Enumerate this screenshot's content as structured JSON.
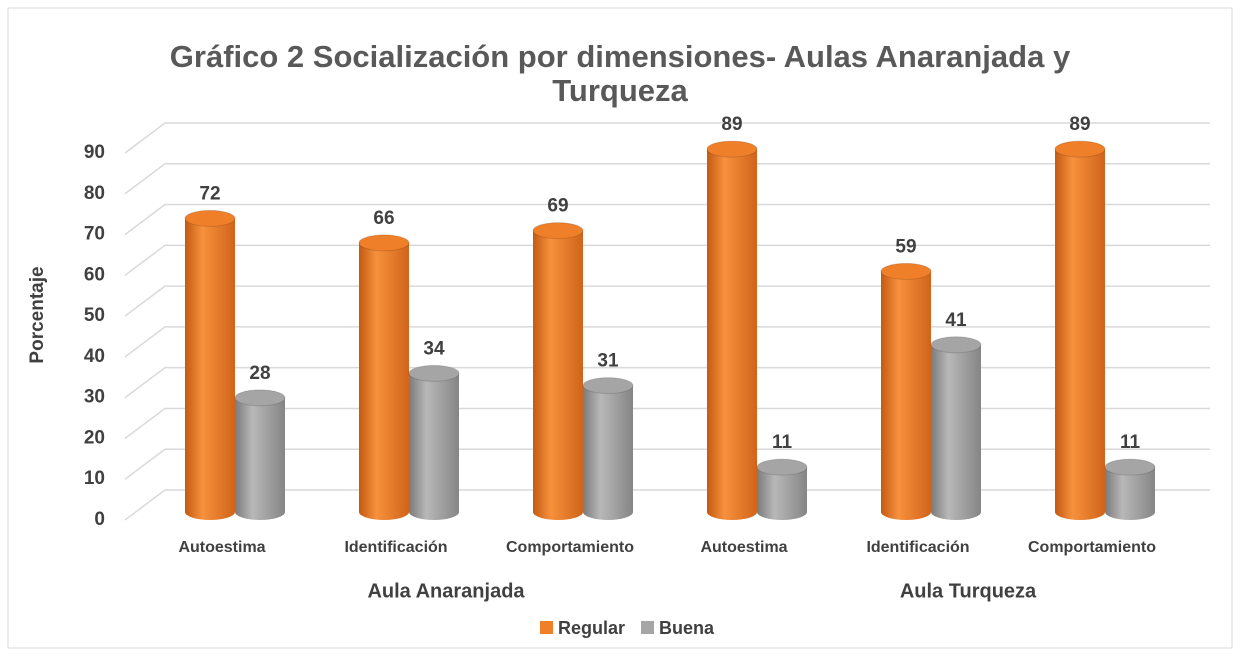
{
  "chart_data": {
    "type": "bar",
    "title": "Gráfico 2 Socialización por dimensiones- Aulas Anaranjada y Turqueza",
    "y_label": "Porcentaje",
    "categories": [
      "Autoestima",
      "Identificación",
      "Comportamiento",
      "Autoestima",
      "Identificación",
      "Comportamiento"
    ],
    "group_labels": [
      "Aula Anaranjada",
      "Aula Turqueza"
    ],
    "series": [
      {
        "name": "Regular",
        "color": "#f07f2a",
        "values": [
          72,
          66,
          69,
          89,
          59,
          89
        ]
      },
      {
        "name": "Buena",
        "color": "#a5a5a5",
        "values": [
          28,
          34,
          31,
          11,
          41,
          11
        ]
      }
    ],
    "ylim": [
      0,
      90
    ],
    "yticks": [
      0,
      10,
      20,
      30,
      40,
      50,
      60,
      70,
      80,
      90
    ],
    "grid": true,
    "legend": "bottom"
  }
}
